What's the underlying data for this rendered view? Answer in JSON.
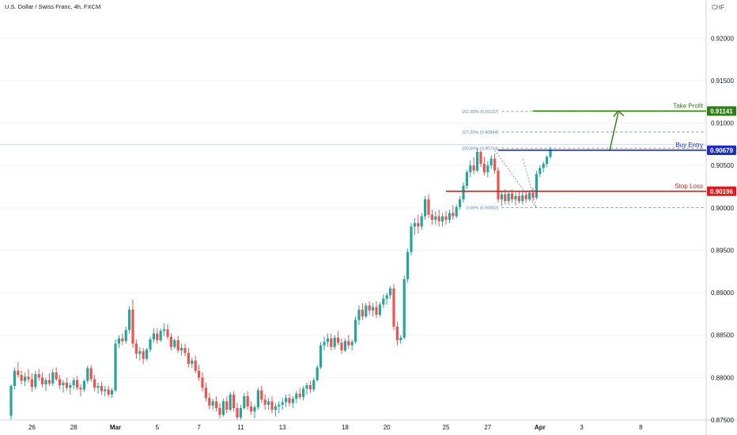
{
  "header": {
    "symbol_title": "U.S. Dollar / Swiss Franc, 4h, FXCM",
    "currency": "CHF"
  },
  "colors": {
    "bull": "#26a69a",
    "bear": "#ef5350",
    "take_profit": "#2e7d12",
    "buy_entry": "#1e2fbf",
    "stop_loss": "#e01b1b",
    "fib": "#5b86b5",
    "axis_text": "#131722"
  },
  "chart_data": {
    "type": "candlestick",
    "ylim": [
      0.875,
      0.9245
    ],
    "y_ticks": [
      "0.92000",
      "0.91500",
      "0.91000",
      "0.90500",
      "0.90000",
      "0.89500",
      "0.89000",
      "0.88500",
      "0.88000",
      "0.87500"
    ],
    "y_tick_values": [
      0.92,
      0.915,
      0.91,
      0.905,
      0.9,
      0.895,
      0.89,
      0.885,
      0.88,
      0.875
    ],
    "x_ticks": [
      "26",
      "28",
      "Mar",
      "5",
      "7",
      "11",
      "13",
      "18",
      "20",
      "25",
      "27",
      "Apr",
      "3",
      "8"
    ],
    "x_tick_bold": [
      "Mar",
      "Apr"
    ],
    "x_tick_index": [
      6,
      18,
      30,
      42,
      54,
      66,
      78,
      96,
      108,
      125,
      137,
      152,
      164,
      181
    ],
    "candles": [
      [
        0.8755,
        0.8792,
        0.875,
        0.879
      ],
      [
        0.879,
        0.8812,
        0.8786,
        0.8808
      ],
      [
        0.8808,
        0.8818,
        0.88,
        0.8803
      ],
      [
        0.8803,
        0.8808,
        0.8792,
        0.8796
      ],
      [
        0.8796,
        0.8806,
        0.879,
        0.8801
      ],
      [
        0.8801,
        0.881,
        0.8794,
        0.8798
      ],
      [
        0.8798,
        0.8805,
        0.8783,
        0.8789
      ],
      [
        0.8789,
        0.8808,
        0.8786,
        0.8804
      ],
      [
        0.8804,
        0.881,
        0.8796,
        0.88
      ],
      [
        0.88,
        0.8806,
        0.8788,
        0.8792
      ],
      [
        0.8792,
        0.88,
        0.8784,
        0.8797
      ],
      [
        0.8797,
        0.8805,
        0.879,
        0.8793
      ],
      [
        0.8793,
        0.881,
        0.879,
        0.8806
      ],
      [
        0.8806,
        0.8812,
        0.8796,
        0.8798
      ],
      [
        0.8798,
        0.8803,
        0.8786,
        0.8791
      ],
      [
        0.8791,
        0.8797,
        0.8782,
        0.8794
      ],
      [
        0.8794,
        0.88,
        0.8785,
        0.8788
      ],
      [
        0.8788,
        0.8794,
        0.878,
        0.8791
      ],
      [
        0.8791,
        0.88,
        0.8786,
        0.8797
      ],
      [
        0.8797,
        0.8802,
        0.8785,
        0.8788
      ],
      [
        0.8788,
        0.8792,
        0.8778,
        0.8786
      ],
      [
        0.8786,
        0.8798,
        0.8783,
        0.8796
      ],
      [
        0.8796,
        0.8814,
        0.8793,
        0.8811
      ],
      [
        0.8811,
        0.8815,
        0.8795,
        0.8798
      ],
      [
        0.8798,
        0.8803,
        0.8784,
        0.8788
      ],
      [
        0.8788,
        0.8794,
        0.8781,
        0.879
      ],
      [
        0.879,
        0.8795,
        0.878,
        0.8784
      ],
      [
        0.8784,
        0.879,
        0.8778,
        0.8786
      ],
      [
        0.8786,
        0.879,
        0.8777,
        0.878
      ],
      [
        0.878,
        0.8788,
        0.8776,
        0.8785
      ],
      [
        0.8785,
        0.8845,
        0.8783,
        0.884
      ],
      [
        0.884,
        0.885,
        0.8835,
        0.8846
      ],
      [
        0.8846,
        0.8852,
        0.8838,
        0.8843
      ],
      [
        0.8843,
        0.886,
        0.884,
        0.8856
      ],
      [
        0.8856,
        0.8884,
        0.8852,
        0.888
      ],
      [
        0.888,
        0.8892,
        0.8835,
        0.884
      ],
      [
        0.884,
        0.8845,
        0.8822,
        0.8828
      ],
      [
        0.8828,
        0.8836,
        0.882,
        0.8831
      ],
      [
        0.8831,
        0.8835,
        0.8816,
        0.8822
      ],
      [
        0.8822,
        0.8835,
        0.882,
        0.8833
      ],
      [
        0.8833,
        0.8848,
        0.883,
        0.8845
      ],
      [
        0.8845,
        0.8858,
        0.8841,
        0.8852
      ],
      [
        0.8852,
        0.8858,
        0.884,
        0.8844
      ],
      [
        0.8844,
        0.8858,
        0.8842,
        0.8855
      ],
      [
        0.8855,
        0.8864,
        0.8849,
        0.8857
      ],
      [
        0.8857,
        0.8863,
        0.8845,
        0.8848
      ],
      [
        0.8848,
        0.8852,
        0.8832,
        0.8836
      ],
      [
        0.8836,
        0.8846,
        0.8834,
        0.8844
      ],
      [
        0.8844,
        0.8849,
        0.8829,
        0.8832
      ],
      [
        0.8832,
        0.884,
        0.8826,
        0.8835
      ],
      [
        0.8835,
        0.884,
        0.8825,
        0.8829
      ],
      [
        0.8829,
        0.8835,
        0.8812,
        0.8816
      ],
      [
        0.8816,
        0.8824,
        0.8811,
        0.882
      ],
      [
        0.882,
        0.8826,
        0.8805,
        0.8808
      ],
      [
        0.8808,
        0.8815,
        0.8796,
        0.88
      ],
      [
        0.88,
        0.8806,
        0.8784,
        0.8788
      ],
      [
        0.8788,
        0.8794,
        0.8772,
        0.8776
      ],
      [
        0.8776,
        0.8782,
        0.8763,
        0.8767
      ],
      [
        0.8767,
        0.8775,
        0.8762,
        0.8772
      ],
      [
        0.8772,
        0.8778,
        0.876,
        0.8764
      ],
      [
        0.8764,
        0.877,
        0.8752,
        0.8756
      ],
      [
        0.8756,
        0.8775,
        0.8754,
        0.8772
      ],
      [
        0.8772,
        0.8778,
        0.8758,
        0.8762
      ],
      [
        0.8762,
        0.8783,
        0.876,
        0.878
      ],
      [
        0.878,
        0.8784,
        0.876,
        0.8764
      ],
      [
        0.8764,
        0.877,
        0.875,
        0.8753
      ],
      [
        0.8753,
        0.8768,
        0.875,
        0.8764
      ],
      [
        0.8764,
        0.8782,
        0.8762,
        0.8778
      ],
      [
        0.8778,
        0.8784,
        0.8762,
        0.8766
      ],
      [
        0.8766,
        0.8772,
        0.8756,
        0.876
      ],
      [
        0.876,
        0.8768,
        0.8752,
        0.8765
      ],
      [
        0.8765,
        0.8788,
        0.8762,
        0.8785
      ],
      [
        0.8785,
        0.879,
        0.877,
        0.8774
      ],
      [
        0.8774,
        0.878,
        0.8762,
        0.8768
      ],
      [
        0.8768,
        0.8776,
        0.8762,
        0.8772
      ],
      [
        0.8772,
        0.8778,
        0.8758,
        0.8762
      ],
      [
        0.8762,
        0.877,
        0.8754,
        0.8766
      ],
      [
        0.8766,
        0.8772,
        0.8758,
        0.8768
      ],
      [
        0.8768,
        0.8776,
        0.8762,
        0.8771
      ],
      [
        0.8771,
        0.878,
        0.8765,
        0.8776
      ],
      [
        0.8776,
        0.8781,
        0.8766,
        0.877
      ],
      [
        0.877,
        0.8778,
        0.8764,
        0.8775
      ],
      [
        0.8775,
        0.8784,
        0.877,
        0.8781
      ],
      [
        0.8781,
        0.8788,
        0.8774,
        0.8777
      ],
      [
        0.8777,
        0.879,
        0.8773,
        0.8787
      ],
      [
        0.8787,
        0.8794,
        0.878,
        0.8791
      ],
      [
        0.8791,
        0.8796,
        0.8782,
        0.8786
      ],
      [
        0.8786,
        0.88,
        0.8783,
        0.8797
      ],
      [
        0.8797,
        0.8815,
        0.8795,
        0.8812
      ],
      [
        0.8812,
        0.8842,
        0.881,
        0.8838
      ],
      [
        0.8838,
        0.8848,
        0.8832,
        0.8842
      ],
      [
        0.8842,
        0.8852,
        0.8836,
        0.8846
      ],
      [
        0.8846,
        0.8852,
        0.8832,
        0.8836
      ],
      [
        0.8836,
        0.885,
        0.8833,
        0.8847
      ],
      [
        0.8847,
        0.8855,
        0.8838,
        0.8841
      ],
      [
        0.8841,
        0.8846,
        0.8828,
        0.8832
      ],
      [
        0.8832,
        0.8846,
        0.883,
        0.8843
      ],
      [
        0.8843,
        0.885,
        0.8834,
        0.8838
      ],
      [
        0.8838,
        0.8845,
        0.8832,
        0.8842
      ],
      [
        0.8842,
        0.8872,
        0.884,
        0.8868
      ],
      [
        0.8868,
        0.8885,
        0.8862,
        0.888
      ],
      [
        0.888,
        0.8888,
        0.8868,
        0.8872
      ],
      [
        0.8872,
        0.8888,
        0.887,
        0.8885
      ],
      [
        0.8885,
        0.889,
        0.8874,
        0.8879
      ],
      [
        0.8879,
        0.8888,
        0.8872,
        0.8883
      ],
      [
        0.8883,
        0.889,
        0.887,
        0.8874
      ],
      [
        0.8874,
        0.8889,
        0.8871,
        0.8886
      ],
      [
        0.8886,
        0.8898,
        0.8882,
        0.8893
      ],
      [
        0.8893,
        0.89,
        0.8886,
        0.8897
      ],
      [
        0.8897,
        0.8908,
        0.8893,
        0.8905
      ],
      [
        0.8905,
        0.891,
        0.8856,
        0.886
      ],
      [
        0.886,
        0.8866,
        0.8838,
        0.8844
      ],
      [
        0.8844,
        0.885,
        0.884,
        0.8847
      ],
      [
        0.8847,
        0.892,
        0.8845,
        0.8916
      ],
      [
        0.8916,
        0.8952,
        0.8912,
        0.8948
      ],
      [
        0.8948,
        0.8982,
        0.8944,
        0.8978
      ],
      [
        0.8978,
        0.8988,
        0.8968,
        0.8982
      ],
      [
        0.8982,
        0.8992,
        0.897,
        0.8978
      ],
      [
        0.8978,
        0.8994,
        0.8974,
        0.899
      ],
      [
        0.899,
        0.9014,
        0.8986,
        0.901
      ],
      [
        0.901,
        0.9016,
        0.8988,
        0.8992
      ],
      [
        0.8992,
        0.8998,
        0.898,
        0.8986
      ],
      [
        0.8986,
        0.8996,
        0.898,
        0.899
      ],
      [
        0.899,
        0.8998,
        0.8978,
        0.8984
      ],
      [
        0.8984,
        0.8994,
        0.8978,
        0.899
      ],
      [
        0.899,
        0.8996,
        0.898,
        0.8986
      ],
      [
        0.8986,
        0.8998,
        0.8982,
        0.8994
      ],
      [
        0.8994,
        0.9003,
        0.8986,
        0.899
      ],
      [
        0.899,
        0.9004,
        0.8988,
        0.9001
      ],
      [
        0.9001,
        0.9014,
        0.8998,
        0.901
      ],
      [
        0.901,
        0.903,
        0.9006,
        0.9026
      ],
      [
        0.9026,
        0.9045,
        0.9022,
        0.9042
      ],
      [
        0.9042,
        0.9056,
        0.9036,
        0.905
      ],
      [
        0.905,
        0.906,
        0.904,
        0.9044
      ],
      [
        0.9044,
        0.907,
        0.9042,
        0.9066
      ],
      [
        0.9066,
        0.9068,
        0.9048,
        0.9052
      ],
      [
        0.9052,
        0.906,
        0.9038,
        0.9042
      ],
      [
        0.9042,
        0.9055,
        0.9036,
        0.905
      ],
      [
        0.905,
        0.9062,
        0.9046,
        0.9058
      ],
      [
        0.9058,
        0.9064,
        0.904,
        0.9044
      ],
      [
        0.9044,
        0.9048,
        0.9006,
        0.901
      ],
      [
        0.901,
        0.902,
        0.9002,
        0.9016
      ],
      [
        0.9016,
        0.9022,
        0.9004,
        0.9008
      ],
      [
        0.9008,
        0.902,
        0.9004,
        0.9017
      ],
      [
        0.9017,
        0.9022,
        0.9006,
        0.901
      ],
      [
        0.901,
        0.9018,
        0.9003,
        0.9014
      ],
      [
        0.9014,
        0.902,
        0.9005,
        0.9008
      ],
      [
        0.9008,
        0.9019,
        0.9004,
        0.9015
      ],
      [
        0.9015,
        0.902,
        0.9006,
        0.901
      ],
      [
        0.901,
        0.9021,
        0.9008,
        0.9018
      ],
      [
        0.9018,
        0.9024,
        0.9008,
        0.9012
      ],
      [
        0.9012,
        0.9044,
        0.901,
        0.904
      ],
      [
        0.904,
        0.905,
        0.9036,
        0.9047
      ],
      [
        0.9047,
        0.9055,
        0.9042,
        0.9052
      ],
      [
        0.9052,
        0.9062,
        0.9048,
        0.906
      ],
      [
        0.906,
        0.9072,
        0.9058,
        0.9069
      ]
    ],
    "levels": [
      {
        "name": "Take Profit",
        "label": "Take Profit",
        "price_label": "0.91141",
        "value": 0.91141,
        "color_key": "take_profit"
      },
      {
        "name": "Buy Entry",
        "label": "Buy Entry",
        "price_label": "0.90679",
        "value": 0.90679,
        "color_key": "buy_entry"
      },
      {
        "name": "Stop Loss",
        "label": "Stop Loss",
        "price_label": "0.90196",
        "value": 0.90196,
        "color_key": "stop_loss"
      }
    ],
    "fib_levels": [
      {
        "label": "161.80% (0.91137)",
        "value": 0.91137
      },
      {
        "label": "127.20% (0.90894)",
        "value": 0.90894
      },
      {
        "label": "100.00% (0.90704)",
        "value": 0.90704
      },
      {
        "label": "0.00% (0.90002)",
        "value": 0.90002
      }
    ],
    "current_price": 0.9069
  }
}
